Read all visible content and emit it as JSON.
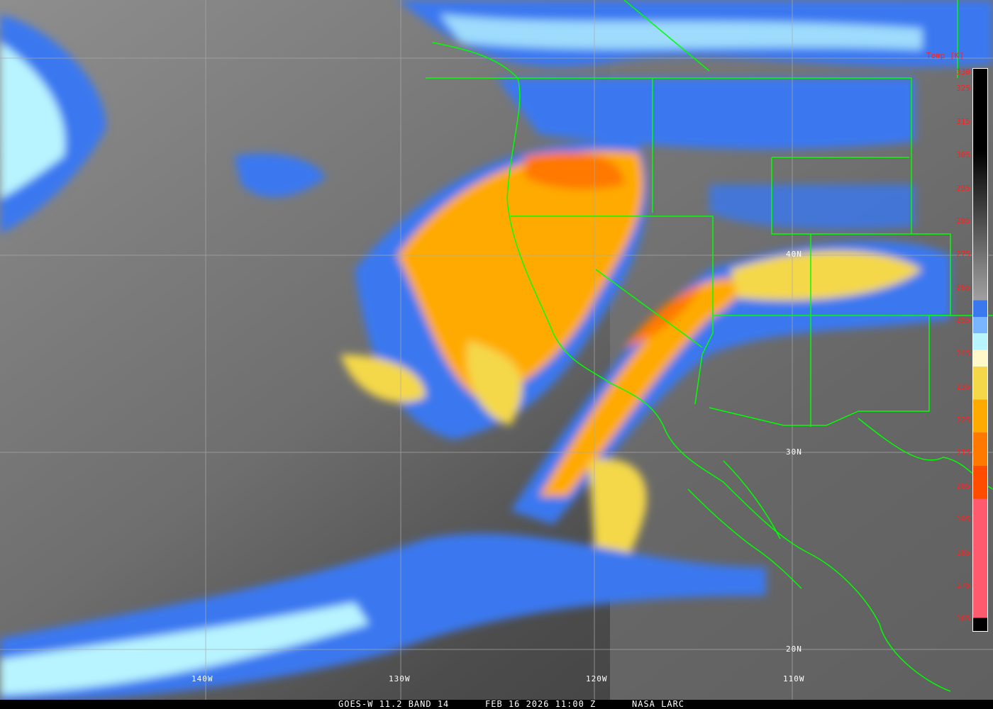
{
  "caption": {
    "satellite": "GOES-W 11.2 BAND 14",
    "datetime": "FEB 16 2026 11:00 Z",
    "source": "NASA LARC"
  },
  "colorbar": {
    "title": "Temp [K]",
    "ticks": [
      "330",
      "325",
      "315",
      "305",
      "295",
      "285",
      "275",
      "265",
      "255",
      "245",
      "235",
      "225",
      "215",
      "205",
      "195",
      "185",
      "175",
      "165"
    ],
    "colors": {
      "blue": "#3a78f0",
      "light_blue": "#78b4ff",
      "cyan": "#b8f4ff",
      "cream": "#fff8c8",
      "yellow": "#f4d84a",
      "orange": "#ffaa00",
      "dark_orange": "#ff7800",
      "red_orange": "#ff4c00",
      "pink": "#ff5a6e"
    }
  },
  "grid": {
    "lat_labels": [
      "40N",
      "30N",
      "20N"
    ],
    "lon_labels": [
      "140W",
      "130W",
      "120W",
      "110W"
    ]
  },
  "boundary_color": "#00ff00"
}
